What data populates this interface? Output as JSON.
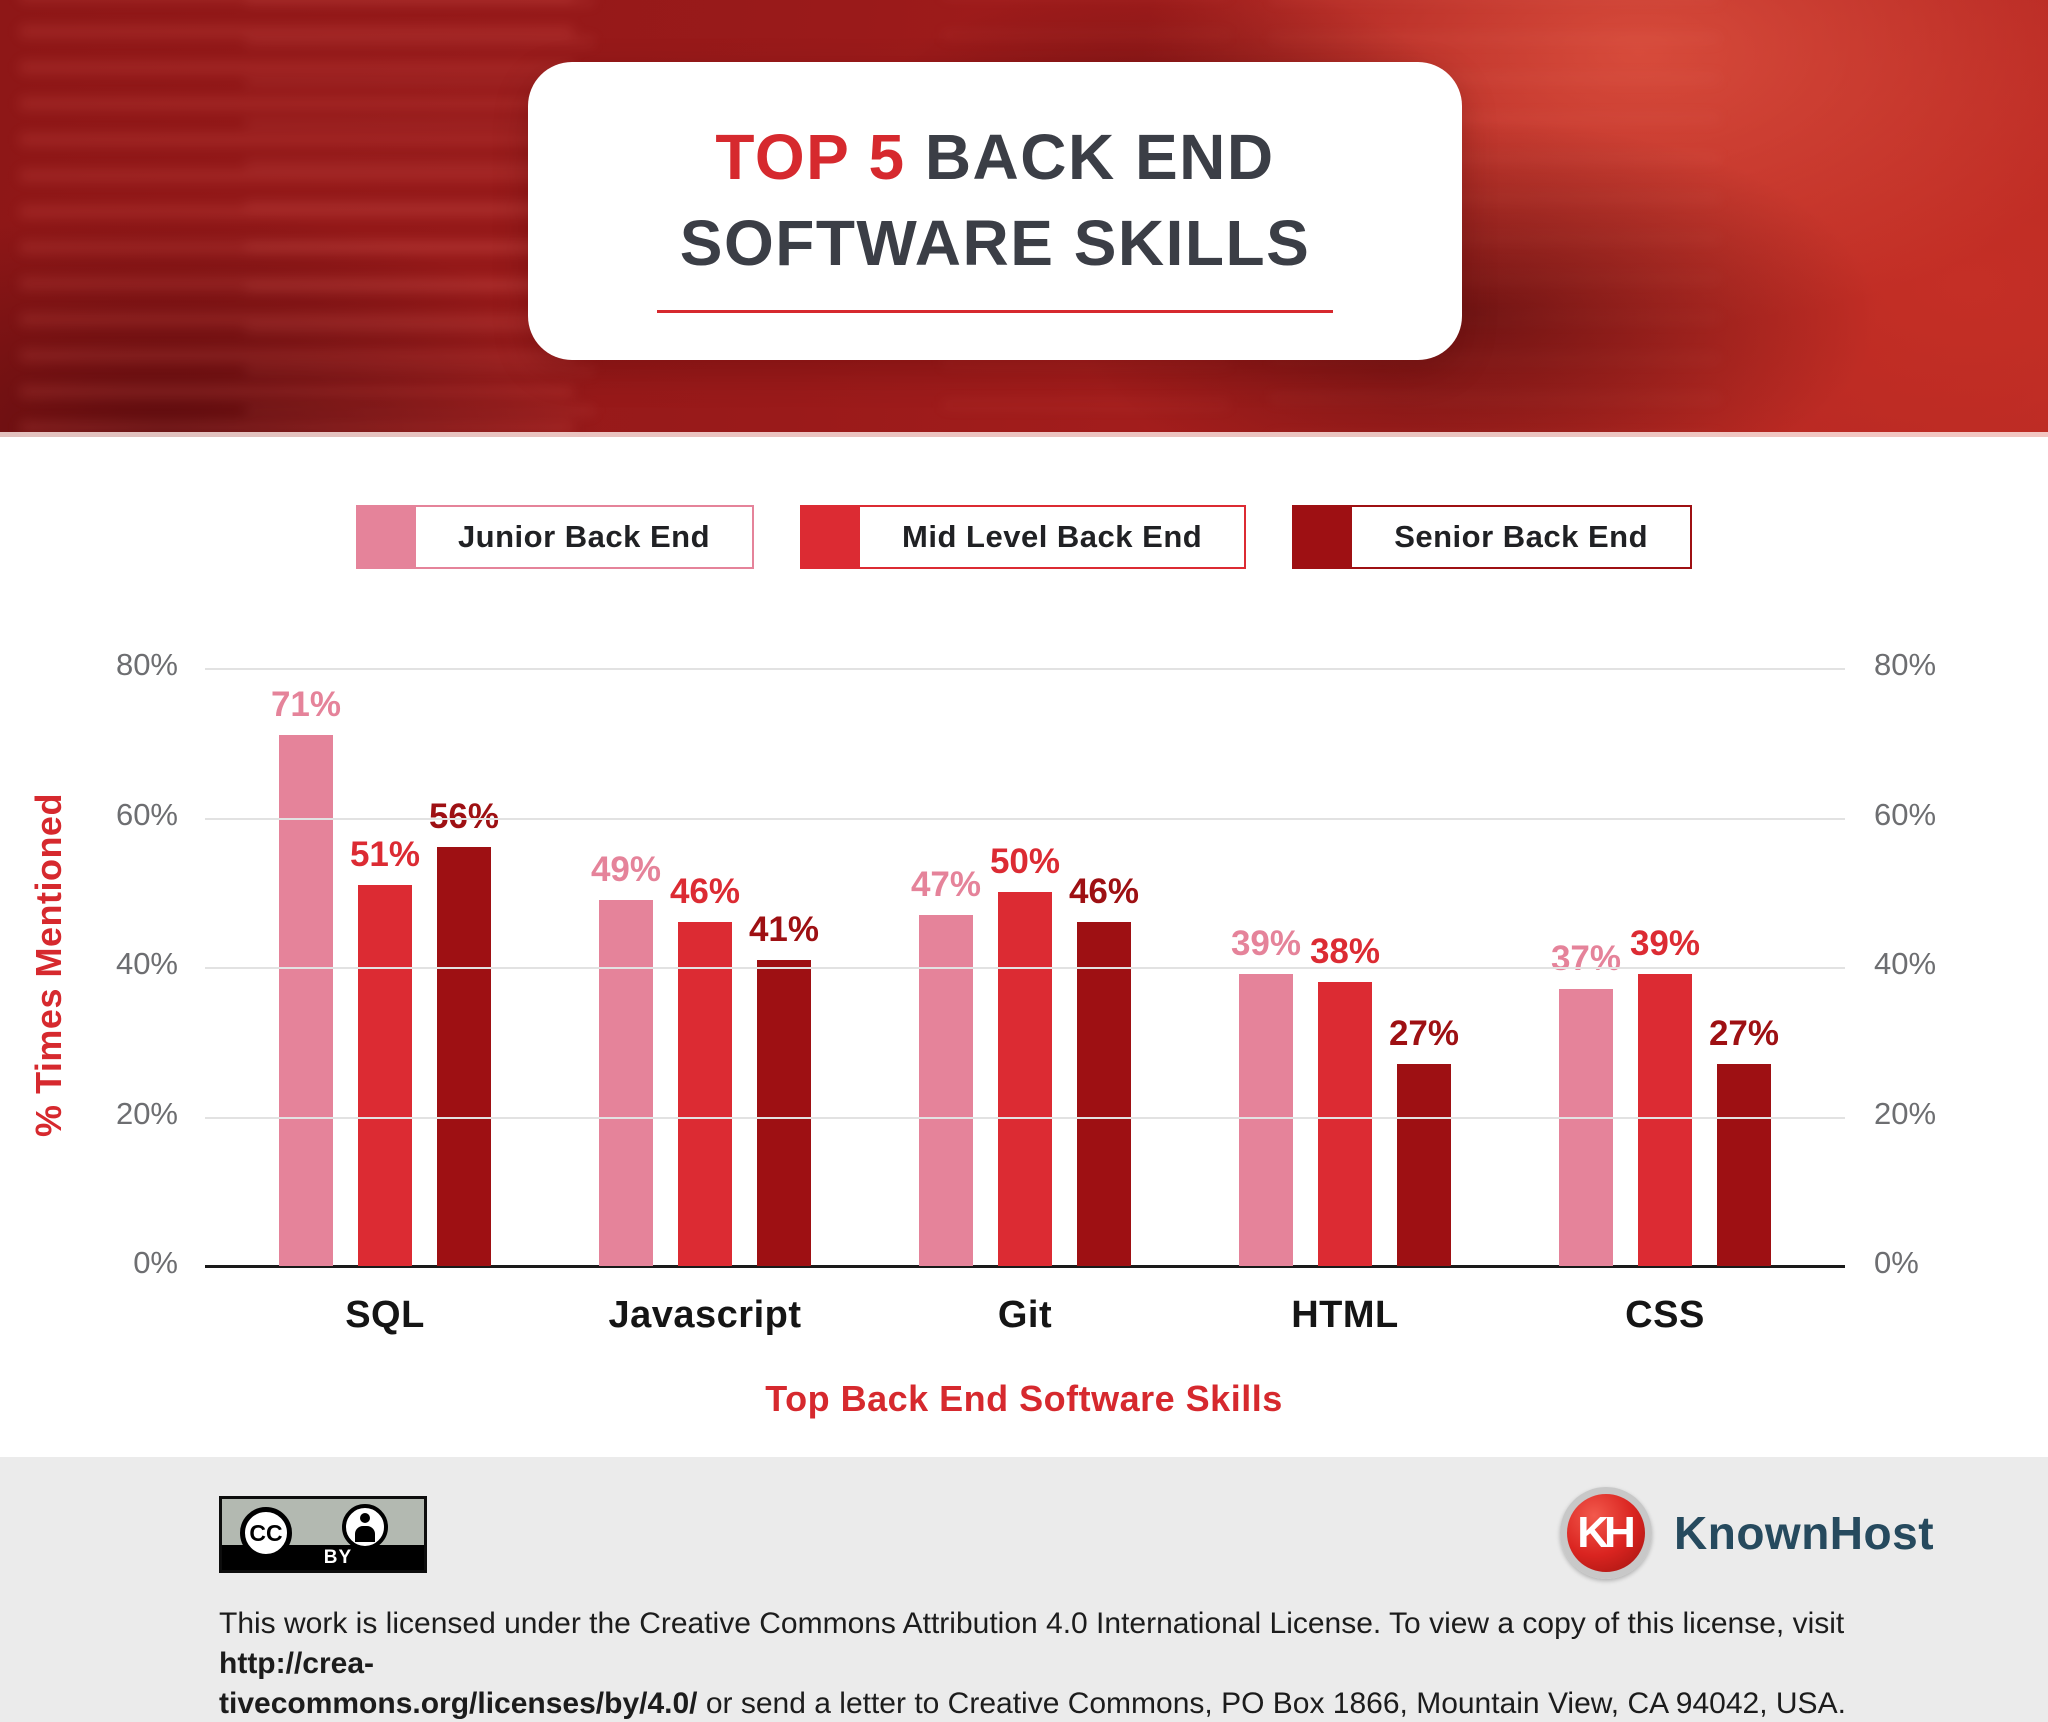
{
  "header": {
    "title_accent": "TOP 5",
    "title_rest": "BACK END",
    "title_line2": "SOFTWARE SKILLS"
  },
  "chart_data": {
    "type": "bar",
    "title": "TOP 5 BACK END SOFTWARE SKILLS",
    "categories": [
      "SQL",
      "Javascript",
      "Git",
      "HTML",
      "CSS"
    ],
    "series": [
      {
        "name": "Junior Back End",
        "color": "#E5839A",
        "values": [
          71,
          49,
          47,
          39,
          37
        ]
      },
      {
        "name": "Mid Level Back End",
        "color": "#DC2B33",
        "values": [
          51,
          46,
          50,
          38,
          39
        ]
      },
      {
        "name": "Senior Back End",
        "color": "#9E1013",
        "values": [
          56,
          41,
          46,
          27,
          27
        ]
      }
    ],
    "xlabel": "Top Back End Software Skills",
    "ylabel": "% Times Mentioned",
    "ylim": [
      0,
      80
    ],
    "yticks": [
      "0%",
      "20%",
      "40%",
      "60%",
      "80%"
    ],
    "grid": true,
    "value_label_format": "percent",
    "legend_position": "top"
  },
  "footer": {
    "cc_monogram": "CC",
    "cc_label": "BY",
    "logo_monogram": "KH",
    "logo_text": "KnownHost",
    "license_line1": "This work is licensed under the Creative Commons Attribution 4.0 International License. To view a copy of this license, visit ",
    "license_line1_bold": "http://crea-",
    "license_line2_bold": "tivecommons.org/licenses/by/4.0/",
    "license_line2": " or send a letter to Creative Commons, PO Box 1866, Mountain View, CA 94042, USA."
  }
}
